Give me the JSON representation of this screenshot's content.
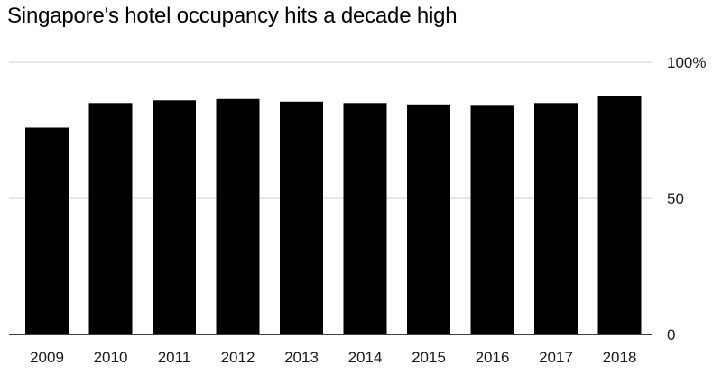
{
  "chart_data": {
    "type": "bar",
    "title": "Singapore's hotel occupancy hits a decade high",
    "xlabel": "",
    "ylabel": "",
    "categories": [
      "2009",
      "2010",
      "2011",
      "2012",
      "2013",
      "2014",
      "2015",
      "2016",
      "2017",
      "2018"
    ],
    "values": [
      76,
      85,
      86,
      86.5,
      85.5,
      85,
      84.5,
      84,
      85,
      87.5
    ],
    "ylim": [
      0,
      100
    ],
    "yticks": [
      0,
      50,
      100
    ],
    "ytick_labels": [
      "0",
      "50",
      "100%"
    ],
    "grid": true,
    "y_axis_side": "right",
    "bar_color": "#000000",
    "grid_color": "#dddddd"
  }
}
